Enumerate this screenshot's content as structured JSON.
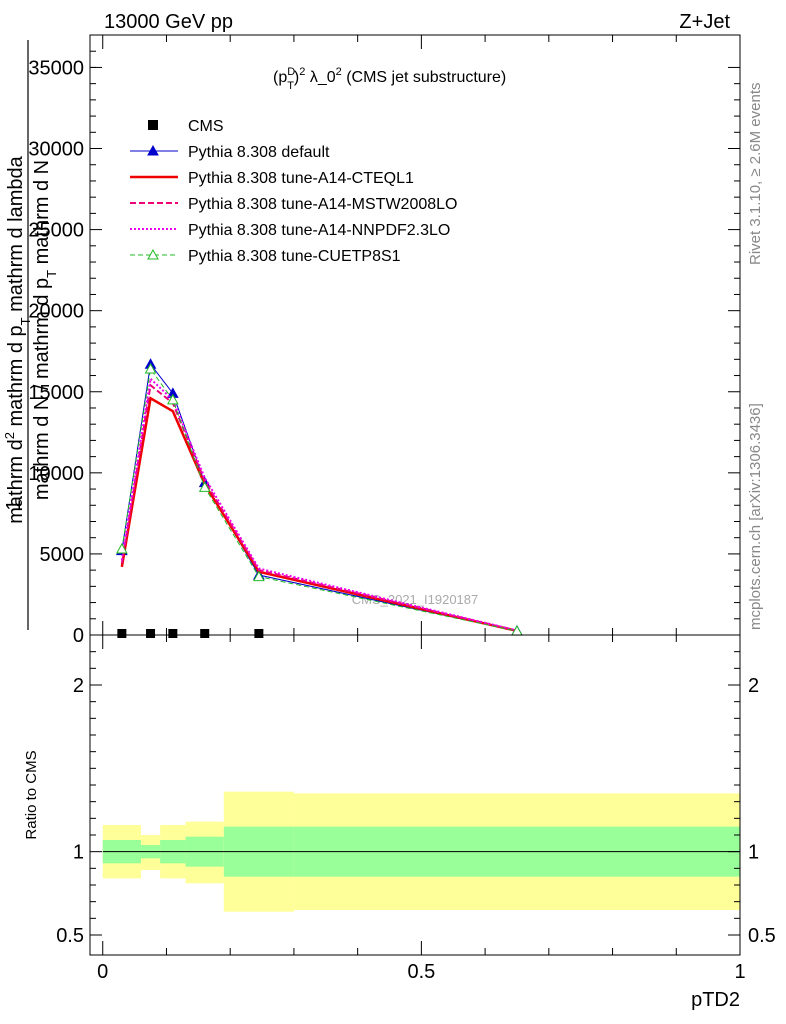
{
  "header": {
    "energy_label": "13000 GeV pp",
    "process_label": "Z+Jet"
  },
  "side_labels": {
    "rivet": "Rivet 3.1.10, ≥ 2.6M events",
    "mcplots": "mcplots.cern.ch [arXiv:1306.3436]"
  },
  "watermark": "CMS_2021_I1920187",
  "chart_data": [
    {
      "type": "line",
      "title": "(p_T^D)^2 λ_0^2 (CMS jet substructure)",
      "title_parts": {
        "open": "(p",
        "sup_d": "D",
        "sub_t": "T",
        "close": ")",
        "sup_2a": "2",
        "mid": " λ_0",
        "sup_2b": "2",
        "tail": " (CMS jet substructure)"
      },
      "ylabel": {
        "numerator": "1",
        "denominator_main": "mathrm d N / mathrm d p",
        "denominator_sub": "T",
        "denominator_tail": " mathrm d N",
        "second_line_a": "mathrm d",
        "second_line_b": "2",
        "second_line_c": "mathrm d p",
        "second_line_d": "T",
        "second_line_e": " mathrm d lambda"
      },
      "ylim": [
        0,
        37000
      ],
      "xlim": [
        -0.02,
        1.0
      ],
      "yticks": [
        0,
        5000,
        10000,
        15000,
        20000,
        25000,
        30000,
        35000
      ],
      "ytick_labels": [
        "0",
        "5000",
        "10000",
        "15000",
        "20000",
        "25000",
        "30000",
        "35000"
      ],
      "legend_position": "top-left",
      "series": [
        {
          "name": "CMS",
          "color": "#000000",
          "style": "data",
          "x": [
            0.03,
            0.075,
            0.11,
            0.16,
            0.245
          ],
          "y": [
            0,
            0,
            0,
            0,
            0
          ]
        },
        {
          "name": "Pythia 8.308 default",
          "color": "#0000cc",
          "style": "solid-triangle",
          "x": [
            0.03,
            0.075,
            0.11,
            0.16,
            0.245,
            0.65
          ],
          "y": [
            5200,
            16700,
            14900,
            9400,
            3700,
            250
          ]
        },
        {
          "name": "Pythia 8.308 tune-A14-CTEQL1",
          "color": "#ee0000",
          "style": "thick-solid",
          "x": [
            0.03,
            0.075,
            0.11,
            0.16,
            0.245,
            0.65
          ],
          "y": [
            4200,
            14600,
            13800,
            9300,
            3900,
            250
          ]
        },
        {
          "name": "Pythia 8.308 tune-A14-MSTW2008LO",
          "color": "#ee0077",
          "style": "dashed",
          "x": [
            0.03,
            0.075,
            0.11,
            0.16,
            0.245,
            0.65
          ],
          "y": [
            4400,
            15400,
            14300,
            9500,
            4000,
            270
          ]
        },
        {
          "name": "Pythia 8.308 tune-A14-NNPDF2.3LO",
          "color": "#ee00ee",
          "style": "dotted",
          "x": [
            0.03,
            0.075,
            0.11,
            0.16,
            0.245,
            0.65
          ],
          "y": [
            4600,
            15800,
            14500,
            9700,
            4100,
            280
          ]
        },
        {
          "name": "Pythia 8.308 tune-CUETP8S1",
          "color": "#22bb22",
          "style": "dashed-triangle",
          "x": [
            0.03,
            0.075,
            0.11,
            0.16,
            0.245,
            0.65
          ],
          "y": [
            5300,
            16400,
            14500,
            9100,
            3600,
            240
          ]
        }
      ]
    },
    {
      "type": "area",
      "ylabel": "Ratio to CMS",
      "xlabel": "pTD2",
      "ylim": [
        0.38,
        2.3
      ],
      "xlim": [
        -0.02,
        1.0
      ],
      "yticks": [
        0.5,
        1,
        2
      ],
      "ytick_labels": [
        "0.5",
        "1",
        "2"
      ],
      "xticks": [
        0,
        0.5,
        1
      ],
      "xtick_labels": [
        "0",
        "0.5",
        "1"
      ],
      "reference_line": 1,
      "bands": {
        "bin_edges": [
          0,
          0.06,
          0.09,
          0.13,
          0.19,
          0.3,
          1.0
        ],
        "inner_low": [
          0.93,
          0.96,
          0.93,
          0.91,
          0.85,
          0.85
        ],
        "inner_high": [
          1.07,
          1.04,
          1.07,
          1.09,
          1.15,
          1.15
        ],
        "outer_low": [
          0.84,
          0.89,
          0.84,
          0.81,
          0.64,
          0.65
        ],
        "outer_high": [
          1.16,
          1.1,
          1.16,
          1.18,
          1.36,
          1.35
        ],
        "inner_color": "#99ff99",
        "outer_color": "#ffff99"
      }
    }
  ]
}
